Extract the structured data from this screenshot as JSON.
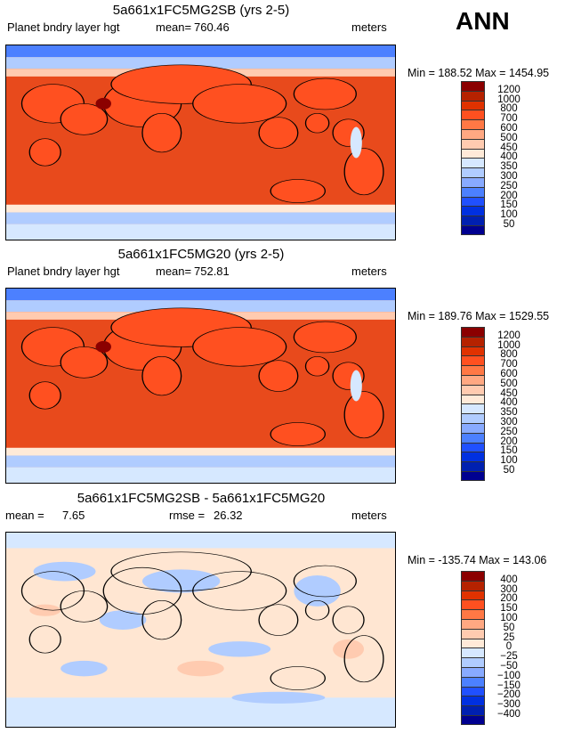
{
  "season": "ANN",
  "panels": [
    {
      "title": "5a661x1FC5MG2SB (yrs 2-5)",
      "variable": "Planet bndry layer hgt",
      "mean_label": "mean=",
      "mean": "760.46",
      "units": "meters",
      "min_max": "Min = 188.52 Max = 1454.95",
      "base_color": "#e84a1c"
    },
    {
      "title": "5a661x1FC5MG20 (yrs 2-5)",
      "variable": "Planet bndry layer hgt",
      "mean_label": "mean=",
      "mean": "752.81",
      "units": "meters",
      "min_max": "Min = 189.76 Max = 1529.55",
      "base_color": "#e84a1c"
    },
    {
      "title": "5a661x1FC5MG2SB - 5a661x1FC5MG20",
      "mean_label": "mean =",
      "mean": "7.65",
      "rmse_label": "rmse =",
      "rmse": "26.32",
      "units": "meters",
      "min_max": "Min = -135.74 Max = 143.06",
      "base_color": "#ffe6d2"
    }
  ],
  "colorbar_colors": [
    "#8b0000",
    "#b52200",
    "#e03200",
    "#ff5020",
    "#ff7845",
    "#ffa882",
    "#ffcbb0",
    "#ffead8",
    "#d6e8ff",
    "#b0ccff",
    "#88aaff",
    "#4c80ff",
    "#2050ff",
    "#0030e0",
    "#0020b0",
    "#000090"
  ],
  "levels_abs": [
    "1200",
    "1000",
    "800",
    "700",
    "600",
    "500",
    "450",
    "400",
    "350",
    "300",
    "250",
    "200",
    "150",
    "100",
    "50"
  ],
  "levels_diff": [
    "400",
    "300",
    "200",
    "150",
    "100",
    "50",
    "25",
    "0",
    "−25",
    "−50",
    "−100",
    "−150",
    "−200",
    "−300",
    "−400"
  ]
}
